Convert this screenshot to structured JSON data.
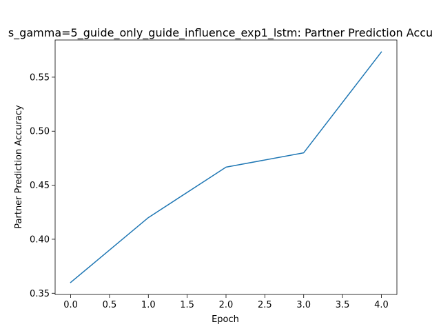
{
  "chart_data": {
    "type": "line",
    "title": "s_gamma=5_guide_only_guide_influence_exp1_lstm: Partner Prediction Accu",
    "xlabel": "Epoch",
    "ylabel": "Partner Prediction Accuracy",
    "x": [
      0,
      1,
      2,
      3,
      4
    ],
    "series": [
      {
        "values": [
          0.36,
          0.42,
          0.4667,
          0.48,
          0.5733
        ],
        "color": "#1f77b4"
      }
    ],
    "xlim": [
      -0.2,
      4.2
    ],
    "ylim": [
      0.3489,
      0.5844
    ],
    "xticks": [
      0,
      0.5,
      1,
      1.5,
      2,
      2.5,
      3,
      3.5,
      4
    ],
    "xtick_labels": [
      "0.0",
      "0.5",
      "1.0",
      "1.5",
      "2.0",
      "2.5",
      "3.0",
      "3.5",
      "4.0"
    ],
    "yticks": [
      0.35,
      0.4,
      0.45,
      0.5,
      0.55
    ],
    "ytick_labels": [
      "0.35",
      "0.40",
      "0.45",
      "0.50",
      "0.55"
    ],
    "grid": false,
    "legend": "none"
  }
}
